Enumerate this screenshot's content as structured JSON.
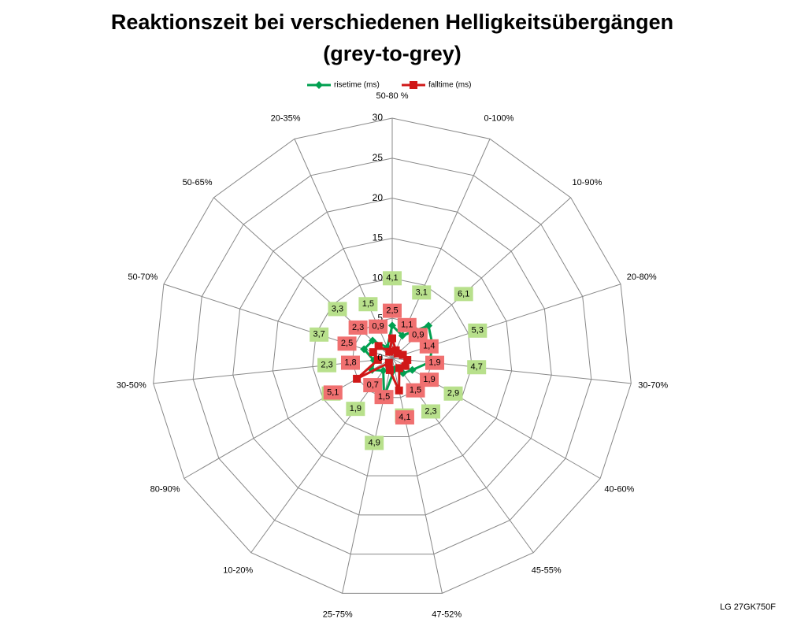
{
  "chart_data": {
    "type": "radar",
    "title": "Reaktionszeit bei verschiedenen Helligkeitsübergängen",
    "subtitle": "(grey-to-grey)",
    "footer": "LG 27GK750F",
    "categories": [
      "50-80 %",
      "0-100%",
      "10-90%",
      "20-80%",
      "30-70%",
      "40-60%",
      "45-55%",
      "47-52%",
      "25-75%",
      "10-20%",
      "80-90%",
      "30-50%",
      "50-70%",
      "50-65%",
      "20-35%"
    ],
    "series": [
      {
        "name": "risetime (ms)",
        "color": "#00a050",
        "label_color": "#b8e08c",
        "values": [
          4.1,
          3.1,
          6.1,
          5.3,
          4.7,
          2.9,
          2.3,
          1.4,
          4.9,
          1.9,
          2.9,
          2.3,
          3.7,
          3.3,
          1.5
        ],
        "value_labels": [
          "4,1",
          "3,1",
          "6,1",
          "5,3",
          "4,7",
          "2,9",
          "2,3",
          "1,4",
          "4,9",
          "1,9",
          "2,9",
          "2,3",
          "3,7",
          "3,3",
          "1,5"
        ]
      },
      {
        "name": "falltime (ms)",
        "color": "#d01818",
        "label_color": "#f07070",
        "values": [
          2.5,
          1.1,
          0.9,
          1.4,
          1.9,
          1.9,
          1.5,
          4.1,
          1.5,
          0.7,
          5.1,
          1.8,
          2.5,
          2.3,
          0.9
        ],
        "value_labels": [
          "2,5",
          "1,1",
          "0,9",
          "1,4",
          "1,9",
          "1,9",
          "1,5",
          "4,1",
          "1,5",
          "0,7",
          "5,1",
          "1,8",
          "2,5",
          "2,3",
          "0,9"
        ]
      }
    ],
    "rlim": [
      0,
      30
    ],
    "rticks": [
      0,
      5,
      10,
      15,
      20,
      25,
      30
    ],
    "legend": "top"
  }
}
